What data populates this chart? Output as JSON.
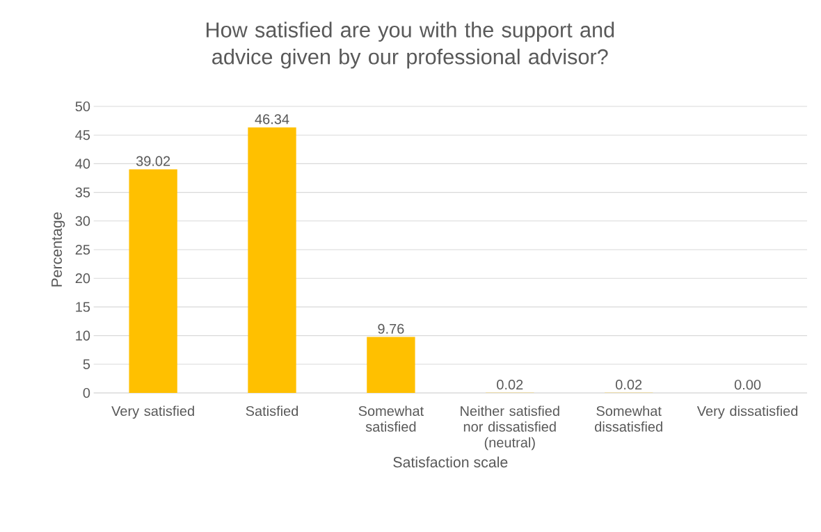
{
  "chart_data": {
    "type": "bar",
    "title": "How satisfied are you with the support and advice given by our professional advisor?",
    "xlabel": "Satisfaction scale",
    "ylabel": "Percentage",
    "categories": [
      "Very satisfied",
      "Satisfied",
      "Somewhat satisfied",
      "Neither satisfied nor dissatisfied (neutral)",
      "Somewhat dissatisfied",
      "Very dissatisfied"
    ],
    "values": [
      39.02,
      46.34,
      9.76,
      0.02,
      0.02,
      0.0
    ],
    "value_labels": [
      "39.02",
      "46.34",
      "9.76",
      "0.02",
      "0.02",
      "0.00"
    ],
    "color": "#ffc000",
    "ylim": [
      0,
      50
    ],
    "yticks": [
      0,
      5,
      10,
      15,
      20,
      25,
      30,
      35,
      40,
      45,
      50
    ],
    "grid": "y"
  }
}
